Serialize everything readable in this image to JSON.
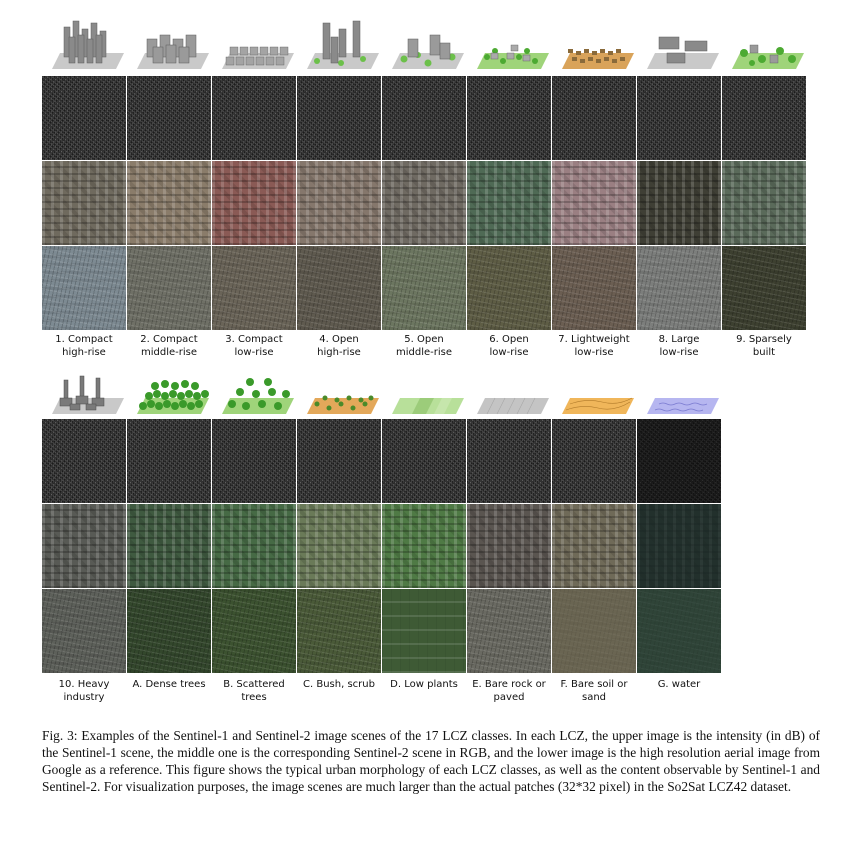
{
  "row1": [
    {
      "label_line1": "1. Compact",
      "label_line2": "high-rise",
      "icon": "compact-high-rise-icon",
      "s2_color": "#6f6a5e",
      "aerial_color": "#7d8a92"
    },
    {
      "label_line1": "2. Compact",
      "label_line2": "middle-rise",
      "icon": "compact-middle-rise-icon",
      "s2_color": "#8a7c6a",
      "aerial_color": "#6f7066"
    },
    {
      "label_line1": "3. Compact",
      "label_line2": "low-rise",
      "icon": "compact-low-rise-icon",
      "s2_color": "#8a5a55",
      "aerial_color": "#6a6458"
    },
    {
      "label_line1": "4. Open",
      "label_line2": "high-rise",
      "icon": "open-high-rise-icon",
      "s2_color": "#85776c",
      "aerial_color": "#5f5a4f"
    },
    {
      "label_line1": "5. Open",
      "label_line2": "middle-rise",
      "icon": "open-middle-rise-icon",
      "s2_color": "#6f6a62",
      "aerial_color": "#6c7660"
    },
    {
      "label_line1": "6. Open",
      "label_line2": "low-rise",
      "icon": "open-low-rise-icon",
      "s2_color": "#4f6a55",
      "aerial_color": "#5e5d45"
    },
    {
      "label_line1": "7. Lightweight",
      "label_line2": "low-rise",
      "icon": "lightweight-low-rise-icon",
      "s2_color": "#9a7f82",
      "aerial_color": "#6b5e52"
    },
    {
      "label_line1": "8. Large",
      "label_line2": "low-rise",
      "icon": "large-low-rise-icon",
      "s2_color": "#3f3f35",
      "aerial_color": "#7c7e7c"
    },
    {
      "label_line1": "9. Sparsely",
      "label_line2": "built",
      "icon": "sparsely-built-icon",
      "s2_color": "#5a6a5a",
      "aerial_color": "#3d4030"
    }
  ],
  "row2": [
    {
      "label_line1": "10. Heavy",
      "label_line2": "industry",
      "icon": "heavy-industry-icon",
      "s2_color": "#585a55",
      "aerial_color": "#5d605a"
    },
    {
      "label_line1": "A. Dense trees",
      "label_line2": "",
      "icon": "dense-trees-icon",
      "s2_color": "#3f5a40",
      "aerial_color": "#33472c"
    },
    {
      "label_line1": "B. Scattered",
      "label_line2": "trees",
      "icon": "scattered-trees-icon",
      "s2_color": "#466a45",
      "aerial_color": "#3c5230"
    },
    {
      "label_line1": "C. Bush, scrub",
      "label_line2": "",
      "icon": "bush-scrub-icon",
      "s2_color": "#6a7a58",
      "aerial_color": "#4a5a38"
    },
    {
      "label_line1": "D. Low plants",
      "label_line2": "",
      "icon": "low-plants-icon",
      "s2_color": "#4f7a45",
      "aerial_color": "#3e5a35"
    },
    {
      "label_line1": "E. Bare rock or",
      "label_line2": "paved",
      "icon": "bare-rock-paved-icon",
      "s2_color": "#5a5550",
      "aerial_color": "#6a6a62"
    },
    {
      "label_line1": "F. Bare soil or",
      "label_line2": "sand",
      "icon": "bare-soil-sand-icon",
      "s2_color": "#6f6a58",
      "aerial_color": "#6a6552"
    },
    {
      "label_line1": "G. water",
      "label_line2": "",
      "icon": "water-icon",
      "s2_color": "#22302c",
      "aerial_color": "#2f4438"
    }
  ],
  "caption": "Fig. 3: Examples of the Sentinel-1 and Sentinel-2 image scenes of the 17 LCZ classes. In each LCZ, the upper image is the intensity (in dB) of the Sentinel-1 scene, the middle one is the corresponding Sentinel-2 scene in RGB, and the lower image is the high resolution aerial image from Google as a reference. This figure shows the typical urban morphology of each LCZ classes, as well as the content observable by Sentinel-1 and Sentinel-2. For visualization purposes, the image scenes are much larger than the actual patches (32*32 pixel) in the So2Sat LCZ42 dataset."
}
